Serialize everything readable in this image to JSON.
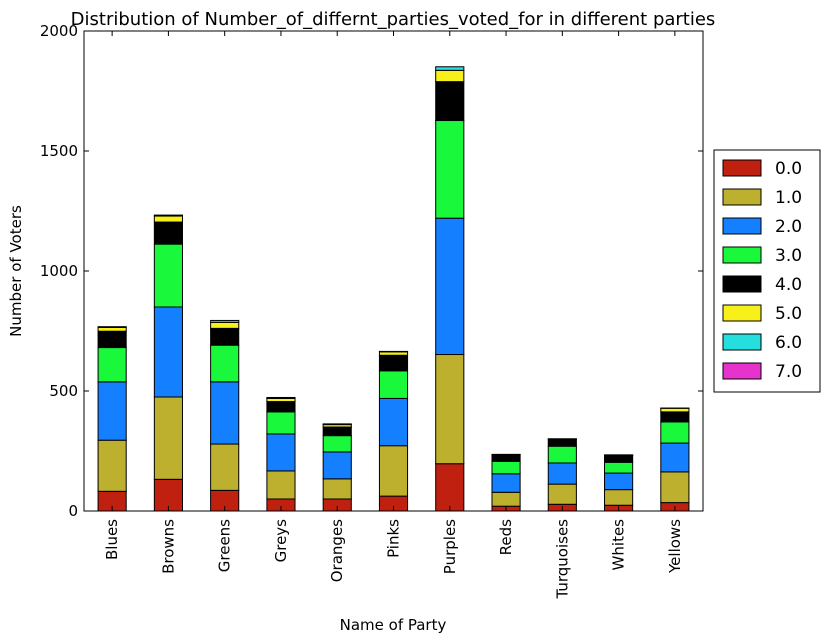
{
  "chart_data": {
    "type": "bar",
    "stacked": true,
    "title": "Distribution of Number_of_differnt_parties_voted_for in different parties",
    "xlabel": "Name of Party",
    "ylabel": "Number of Voters",
    "ylim": [
      0,
      2000
    ],
    "yticks": [
      0,
      500,
      1000,
      1500,
      2000
    ],
    "ytick_labels": [
      "0",
      "500",
      "1000",
      "1500",
      "2000"
    ],
    "grid": false,
    "legend_position": "right",
    "categories": [
      "Blues",
      "Browns",
      "Greens",
      "Greys",
      "Oranges",
      "Pinks",
      "Purples",
      "Reds",
      "Turquoises",
      "Whites",
      "Yellows"
    ],
    "series": [
      {
        "name": "0.0",
        "color": "#bf2010",
        "values": [
          82,
          132,
          86,
          50,
          50,
          62,
          197,
          20,
          28,
          24,
          35
        ]
      },
      {
        "name": "1.0",
        "color": "#bdb02e",
        "values": [
          213,
          343,
          193,
          117,
          84,
          210,
          455,
          58,
          84,
          65,
          128
        ]
      },
      {
        "name": "2.0",
        "color": "#1580ff",
        "values": [
          243,
          375,
          259,
          154,
          112,
          197,
          568,
          77,
          88,
          69,
          120
        ]
      },
      {
        "name": "3.0",
        "color": "#1af83c",
        "values": [
          143,
          262,
          153,
          92,
          68,
          115,
          407,
          52,
          70,
          45,
          88
        ]
      },
      {
        "name": "4.0",
        "color": "#000000",
        "values": [
          68,
          92,
          70,
          43,
          36,
          65,
          162,
          28,
          30,
          28,
          42
        ]
      },
      {
        "name": "5.0",
        "color": "#f8f01a",
        "values": [
          16,
          25,
          25,
          13,
          10,
          14,
          47,
          1,
          1,
          2,
          15
        ]
      },
      {
        "name": "6.0",
        "color": "#25dede",
        "values": [
          3,
          4,
          8,
          4,
          3,
          2,
          15,
          0,
          0,
          1,
          1
        ]
      },
      {
        "name": "7.0",
        "color": "#e533cc",
        "values": [
          0,
          0,
          0,
          0,
          0,
          0,
          0,
          0,
          0,
          0,
          0
        ]
      }
    ]
  }
}
